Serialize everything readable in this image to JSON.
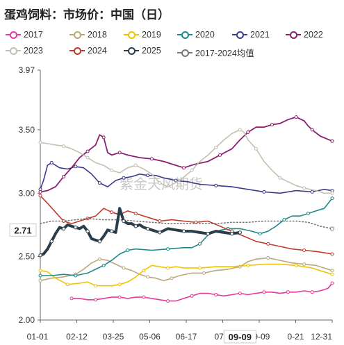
{
  "title": "蛋鸡饲料：市场价：中国（日）",
  "watermark": "紫金天风期货",
  "chart_data": {
    "type": "line",
    "title": "蛋鸡饲料：市场价：中国（日）",
    "xlabel": "",
    "ylabel": "",
    "ylim": [
      2.0,
      3.97
    ],
    "yticks": [
      "3.97",
      "3.50",
      "3.00",
      "2.50",
      "2.00"
    ],
    "xticks": [
      "01-01",
      "02-12",
      "03-25",
      "05-06",
      "06-17",
      "07-2",
      "09-09",
      "0-21",
      "12-31"
    ],
    "current_label": "2.71",
    "current_date_label": "09-09",
    "grid": false,
    "legend_position": "top",
    "series": [
      {
        "name": "2017",
        "color": "#e6399b",
        "dotted": false,
        "width": 1.6,
        "x": [
          40,
          50,
          60,
          70,
          80,
          90,
          100,
          110,
          120,
          130,
          140,
          150,
          160,
          170,
          180,
          190,
          200,
          210,
          220,
          230,
          240,
          250,
          260,
          270,
          280,
          290,
          300,
          310,
          320,
          330,
          340,
          350,
          360,
          365
        ],
        "values": [
          2.17,
          2.17,
          2.16,
          2.16,
          2.17,
          2.18,
          2.18,
          2.17,
          2.18,
          2.18,
          2.17,
          2.16,
          2.15,
          2.15,
          2.17,
          2.19,
          2.21,
          2.21,
          2.2,
          2.19,
          2.2,
          2.21,
          2.2,
          2.21,
          2.22,
          2.22,
          2.21,
          2.22,
          2.22,
          2.23,
          2.22,
          2.23,
          2.25,
          2.29
        ]
      },
      {
        "name": "2018",
        "color": "#b9a878",
        "dotted": false,
        "width": 1.6,
        "x": [
          1,
          15,
          30,
          45,
          55,
          65,
          75,
          85,
          95,
          105,
          115,
          125,
          135,
          145,
          155,
          165,
          175,
          190,
          205,
          220,
          235,
          250,
          260,
          270,
          285,
          300,
          315,
          330,
          345,
          355,
          365
        ],
        "values": [
          2.31,
          2.33,
          2.34,
          2.36,
          2.4,
          2.45,
          2.48,
          2.47,
          2.44,
          2.41,
          2.39,
          2.36,
          2.34,
          2.33,
          2.31,
          2.33,
          2.35,
          2.37,
          2.37,
          2.39,
          2.4,
          2.42,
          2.46,
          2.48,
          2.49,
          2.47,
          2.45,
          2.44,
          2.43,
          2.41,
          2.39
        ]
      },
      {
        "name": "2019",
        "color": "#f2c200",
        "dotted": false,
        "width": 1.6,
        "x": [
          1,
          10,
          20,
          35,
          50,
          60,
          70,
          80,
          90,
          100,
          110,
          120,
          130,
          140,
          150,
          160,
          170,
          180,
          200,
          220,
          240,
          260,
          280,
          300,
          320,
          340,
          355,
          365
        ],
        "values": [
          2.39,
          2.38,
          2.33,
          2.28,
          2.29,
          2.3,
          2.27,
          2.27,
          2.27,
          2.28,
          2.3,
          2.34,
          2.39,
          2.43,
          2.42,
          2.41,
          2.42,
          2.41,
          2.41,
          2.42,
          2.42,
          2.43,
          2.44,
          2.44,
          2.43,
          2.41,
          2.38,
          2.36
        ]
      },
      {
        "name": "2020",
        "color": "#1a8a8a",
        "dotted": false,
        "width": 1.6,
        "x": [
          1,
          15,
          30,
          45,
          60,
          70,
          80,
          90,
          100,
          110,
          120,
          140,
          160,
          180,
          190,
          200,
          210,
          220,
          235,
          250,
          265,
          275,
          285,
          295,
          305,
          315,
          325,
          335,
          345,
          355,
          365
        ],
        "values": [
          2.35,
          2.35,
          2.36,
          2.35,
          2.37,
          2.4,
          2.43,
          2.47,
          2.52,
          2.55,
          2.56,
          2.55,
          2.56,
          2.57,
          2.57,
          2.6,
          2.67,
          2.7,
          2.72,
          2.72,
          2.7,
          2.68,
          2.7,
          2.74,
          2.79,
          2.82,
          2.82,
          2.84,
          2.86,
          2.88,
          2.96
        ]
      },
      {
        "name": "2021",
        "color": "#3c3c8c",
        "dotted": false,
        "width": 1.6,
        "x": [
          1,
          5,
          10,
          15,
          25,
          35,
          45,
          55,
          65,
          75,
          85,
          95,
          105,
          115,
          125,
          135,
          145,
          155,
          170,
          185,
          200,
          220,
          240,
          260,
          280,
          300,
          320,
          340,
          355,
          365
        ],
        "values": [
          3.03,
          3.1,
          3.22,
          3.24,
          3.2,
          3.19,
          3.21,
          3.2,
          3.15,
          3.08,
          3.05,
          3.1,
          3.12,
          3.13,
          3.15,
          3.14,
          3.14,
          3.12,
          3.1,
          3.09,
          3.07,
          3.06,
          3.05,
          3.03,
          3.01,
          3.0,
          3.02,
          3.01,
          3.03,
          3.02
        ]
      },
      {
        "name": "2022",
        "color": "#8b1e6e",
        "dotted": false,
        "width": 1.8,
        "x": [
          1,
          10,
          20,
          30,
          40,
          50,
          60,
          70,
          75,
          80,
          85,
          90,
          100,
          110,
          125,
          140,
          155,
          170,
          180,
          195,
          210,
          225,
          240,
          250,
          260,
          270,
          280,
          290,
          300,
          310,
          320,
          330,
          335,
          340,
          350,
          365
        ],
        "values": [
          3.01,
          3.02,
          3.05,
          3.13,
          3.2,
          3.28,
          3.33,
          3.38,
          3.46,
          3.44,
          3.32,
          3.3,
          3.32,
          3.3,
          3.28,
          3.27,
          3.25,
          3.22,
          3.2,
          3.23,
          3.25,
          3.3,
          3.35,
          3.42,
          3.48,
          3.52,
          3.52,
          3.54,
          3.55,
          3.58,
          3.6,
          3.57,
          3.53,
          3.5,
          3.45,
          3.41
        ]
      },
      {
        "name": "2023",
        "color": "#c4bfae",
        "dotted": false,
        "width": 1.6,
        "x": [
          1,
          10,
          20,
          30,
          40,
          50,
          60,
          70,
          80,
          90,
          100,
          110,
          120,
          130,
          140,
          150,
          160,
          175,
          190,
          200,
          210,
          220,
          230,
          240,
          250,
          255,
          260,
          270,
          280,
          290,
          300,
          310,
          320,
          330,
          345,
          355,
          365
        ],
        "values": [
          3.4,
          3.39,
          3.38,
          3.37,
          3.35,
          3.32,
          3.28,
          3.24,
          3.22,
          3.18,
          3.16,
          3.2,
          3.22,
          3.19,
          3.15,
          3.08,
          3.05,
          3.1,
          3.18,
          3.25,
          3.3,
          3.36,
          3.42,
          3.47,
          3.5,
          3.48,
          3.42,
          3.35,
          3.25,
          3.18,
          3.12,
          3.09,
          3.06,
          3.04,
          3.02,
          3.0,
          3.0
        ]
      },
      {
        "name": "2024",
        "color": "#c0392b",
        "dotted": false,
        "width": 1.6,
        "x": [
          1,
          10,
          20,
          30,
          40,
          50,
          60,
          70,
          80,
          90,
          100,
          110,
          120,
          130,
          140,
          150,
          165,
          180,
          195,
          210,
          225,
          240,
          255,
          270,
          285,
          300,
          315,
          330,
          345,
          355,
          365
        ],
        "values": [
          2.98,
          2.92,
          2.85,
          2.78,
          2.76,
          2.78,
          2.8,
          2.82,
          2.88,
          2.85,
          2.83,
          2.86,
          2.84,
          2.82,
          2.8,
          2.78,
          2.79,
          2.78,
          2.77,
          2.78,
          2.74,
          2.7,
          2.66,
          2.62,
          2.6,
          2.58,
          2.56,
          2.55,
          2.54,
          2.53,
          2.52
        ]
      },
      {
        "name": "2025",
        "color": "#2a3d4a",
        "dotted": false,
        "width": 4,
        "x": [
          1,
          5,
          10,
          15,
          20,
          25,
          30,
          35,
          40,
          45,
          50,
          55,
          60,
          65,
          70,
          75,
          80,
          85,
          90,
          95,
          100,
          105,
          110,
          115,
          120,
          125,
          130,
          135,
          140,
          145,
          150,
          160,
          170,
          180,
          190,
          200,
          210,
          220,
          230,
          240,
          250
        ],
        "values": [
          2.51,
          2.52,
          2.56,
          2.62,
          2.68,
          2.73,
          2.72,
          2.75,
          2.74,
          2.73,
          2.72,
          2.74,
          2.7,
          2.64,
          2.63,
          2.62,
          2.66,
          2.71,
          2.7,
          2.69,
          2.88,
          2.78,
          2.76,
          2.76,
          2.74,
          2.75,
          2.73,
          2.72,
          2.71,
          2.7,
          2.69,
          2.72,
          2.71,
          2.7,
          2.7,
          2.69,
          2.68,
          2.7,
          2.69,
          2.68,
          2.69
        ]
      },
      {
        "name": "2017-2024均值",
        "color": "#777777",
        "dotted": true,
        "width": 1.6,
        "x": [
          1,
          15,
          30,
          45,
          60,
          80,
          100,
          120,
          140,
          160,
          180,
          200,
          220,
          240,
          260,
          280,
          300,
          320,
          335,
          350,
          365
        ],
        "values": [
          2.76,
          2.78,
          2.78,
          2.79,
          2.8,
          2.79,
          2.79,
          2.78,
          2.77,
          2.76,
          2.76,
          2.76,
          2.76,
          2.77,
          2.77,
          2.78,
          2.78,
          2.78,
          2.77,
          2.74,
          2.72
        ]
      }
    ]
  }
}
